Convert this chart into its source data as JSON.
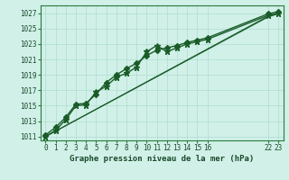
{
  "title": "Graphe pression niveau de la mer (hPa)",
  "background_color": "#d0f0e8",
  "grid_color": "#b0ddd0",
  "line_color": "#1a5c28",
  "ylim": [
    1010.5,
    1028.0
  ],
  "xlim": [
    -0.5,
    23.5
  ],
  "yticks": [
    1011,
    1013,
    1015,
    1017,
    1019,
    1021,
    1023,
    1025,
    1027
  ],
  "xticks": [
    0,
    1,
    2,
    3,
    4,
    5,
    6,
    7,
    8,
    9,
    10,
    11,
    12,
    13,
    14,
    15,
    16,
    22,
    23
  ],
  "xtick_labels": [
    "0",
    "1",
    "2",
    "3",
    "4",
    "5",
    "6",
    "7",
    "8",
    "9",
    "10",
    "11",
    "12",
    "13",
    "14",
    "15",
    "16",
    "22",
    "23"
  ],
  "series": [
    {
      "x": [
        0,
        1,
        2,
        3,
        4,
        5,
        6,
        7,
        8,
        9,
        10,
        11,
        12,
        13,
        14,
        15,
        16,
        22,
        23
      ],
      "y": [
        1011.2,
        1012.2,
        1013.5,
        1015.2,
        1015.3,
        1016.5,
        1018.0,
        1019.0,
        1019.8,
        1020.5,
        1021.5,
        1022.2,
        1022.5,
        1022.8,
        1023.2,
        1023.5,
        1023.8,
        1026.9,
        1027.2
      ],
      "marker": "D",
      "markersize": 3.0,
      "lw": 1.0,
      "has_markers": true
    },
    {
      "x": [
        0,
        1,
        2,
        3,
        4,
        5,
        6,
        7,
        8,
        9,
        10,
        11,
        12,
        13,
        14,
        15,
        16,
        22,
        23
      ],
      "y": [
        1011.0,
        1011.8,
        1013.2,
        1015.0,
        1015.1,
        1016.8,
        1017.5,
        1018.7,
        1019.2,
        1020.0,
        1022.0,
        1022.8,
        1022.0,
        1022.5,
        1023.0,
        1023.3,
        1023.6,
        1026.7,
        1027.0
      ],
      "marker": "*",
      "markersize": 5.0,
      "lw": 1.0,
      "has_markers": true
    },
    {
      "x": [
        0,
        22,
        23
      ],
      "y": [
        1011.0,
        1026.5,
        1026.9
      ],
      "marker": null,
      "markersize": 0,
      "lw": 0.8,
      "has_markers": false
    },
    {
      "x": [
        0,
        22,
        23
      ],
      "y": [
        1011.0,
        1026.6,
        1027.0
      ],
      "marker": null,
      "markersize": 0,
      "lw": 0.8,
      "has_markers": false
    }
  ],
  "ylabel_fontsize": 5.5,
  "xlabel_fontsize": 6.5,
  "tick_fontsize": 5.5
}
